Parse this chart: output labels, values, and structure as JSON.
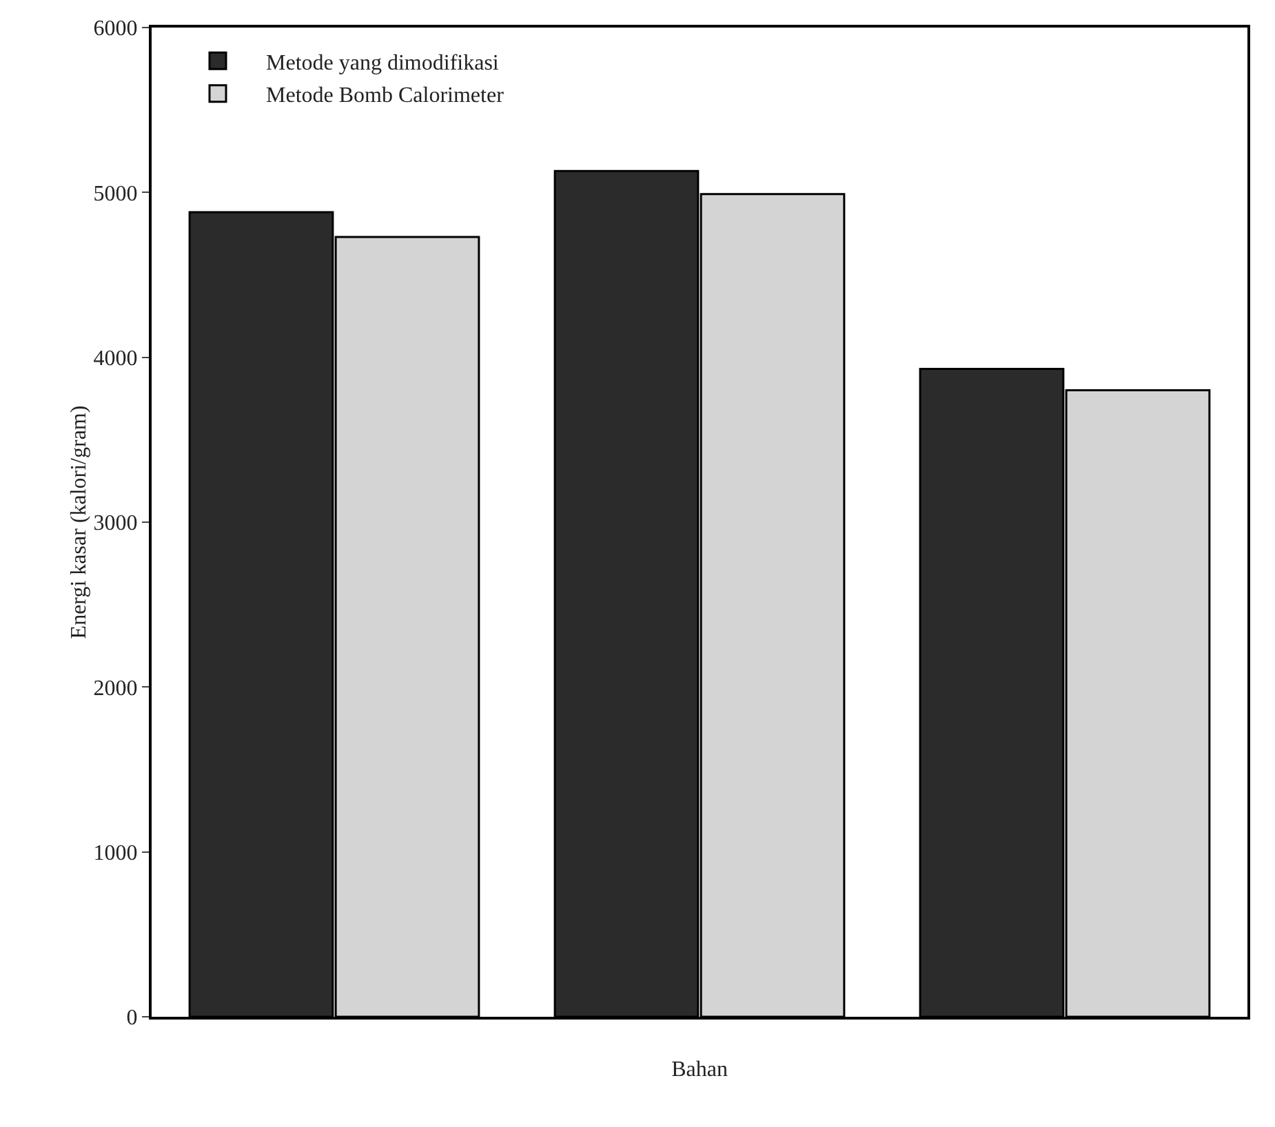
{
  "chart_data": {
    "type": "bar",
    "xlabel": "Bahan",
    "ylabel": "Energi kasar (kalori/gram)",
    "categories": [
      null,
      null,
      null
    ],
    "series": [
      {
        "name": "Metode yang dimodifikasi",
        "color": "#2b2b2b",
        "values": [
          4880,
          5130,
          3930
        ]
      },
      {
        "name": "Metode Bomb Calorimeter",
        "color": "#d4d4d4",
        "values": [
          4730,
          4990,
          3800
        ]
      }
    ],
    "ylim": [
      0,
      6000
    ],
    "yticks": [
      0,
      1000,
      2000,
      3000,
      4000,
      5000,
      6000
    ],
    "grid": false,
    "legend": "top",
    "tick_labels": "y"
  }
}
